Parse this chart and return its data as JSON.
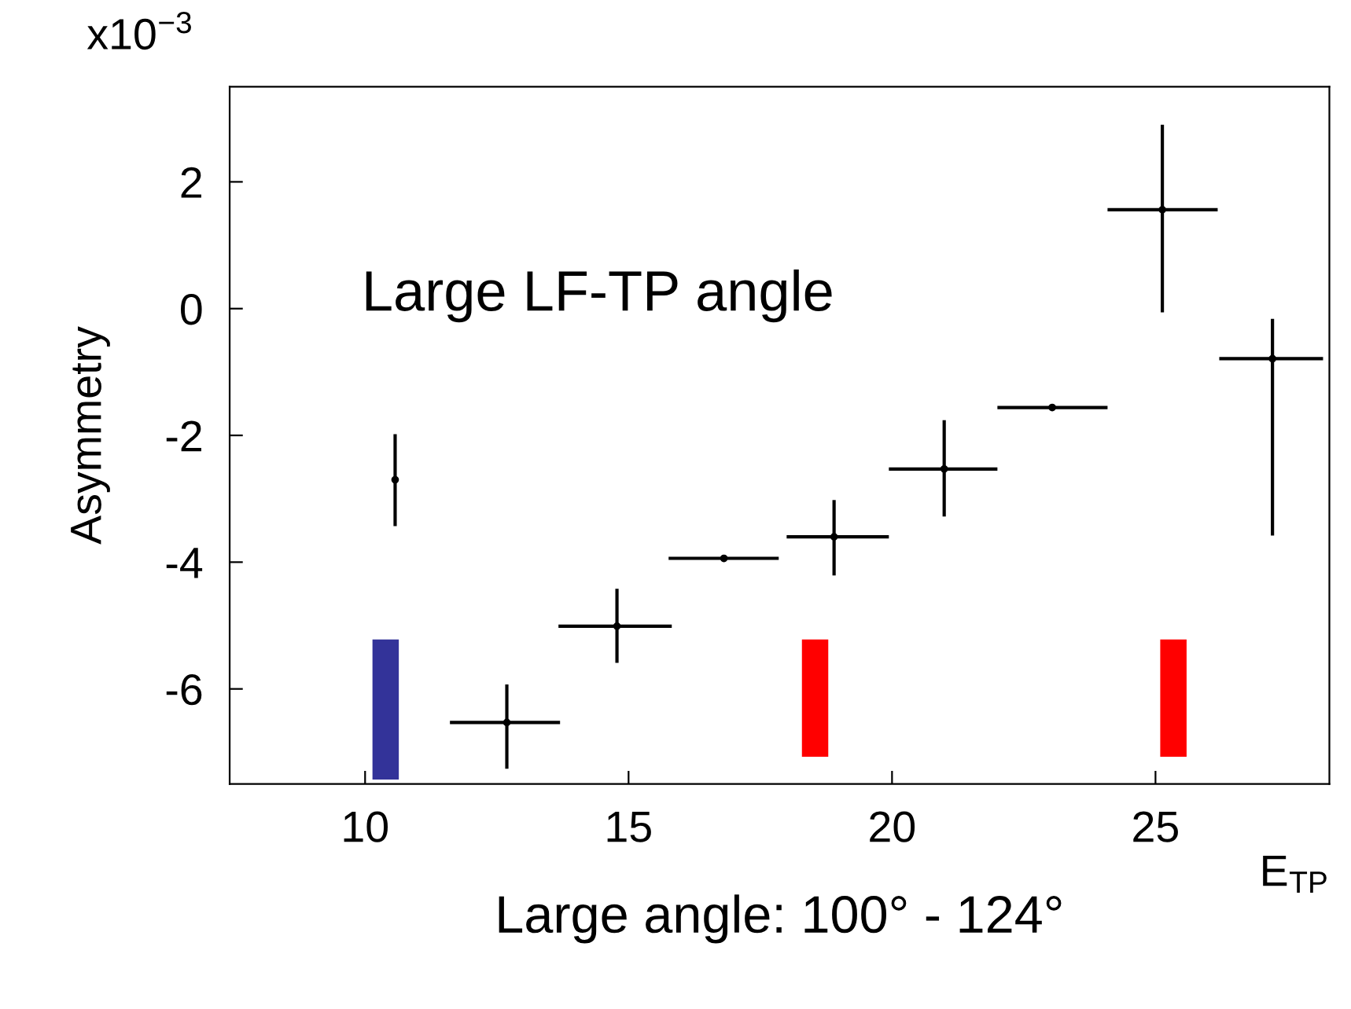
{
  "chart_data": {
    "type": "scatter",
    "xlabel": "Large angle: 100° - 124°",
    "ylabel": "Asymmetry",
    "annotations": [
      "x10$^{−3}$",
      "Large LF-TP angle",
      "E$_{TP}$"
    ],
    "xlim": [
      7.43,
      28.3
    ],
    "ylim": [
      -7.5,
      3.5
    ],
    "xticks": [
      10,
      15,
      20,
      25
    ],
    "yticks": [
      2,
      0,
      -2,
      -4,
      -6
    ],
    "grid": false,
    "series": [
      {
        "color": "#000000",
        "x": [
          10.57,
          12.69,
          14.78,
          16.81,
          18.9,
          20.99,
          23.04,
          25.13,
          27.22
        ],
        "values": [
          -2.7,
          -6.53,
          -5.01,
          -3.94,
          -3.6,
          -2.53,
          -1.56,
          1.56,
          -0.79
        ],
        "xerrors": [
          null,
          [
            11.61,
            13.7
          ],
          [
            13.67,
            15.82
          ],
          [
            15.76,
            17.85
          ],
          [
            18.0,
            19.94
          ],
          [
            19.94,
            22.0
          ],
          [
            22.0,
            24.09
          ],
          [
            24.09,
            26.18
          ],
          [
            26.21,
            28.18
          ]
        ],
        "errors": [
          [
            -3.43,
            -1.98
          ],
          [
            -7.26,
            -5.93
          ],
          [
            -5.59,
            -4.42
          ],
          null,
          [
            -4.21,
            -3.02
          ],
          [
            -3.28,
            -1.76
          ],
          null,
          [
            -0.06,
            2.9
          ],
          [
            -3.58,
            -0.16
          ]
        ]
      },
      {
        "type": "bar",
        "x": [
          10.39
        ],
        "base": [
          -7.43
        ],
        "values": [
          2.21
        ],
        "color": "#333399"
      },
      {
        "type": "bar",
        "x": [
          18.54,
          25.34
        ],
        "base": [
          -7.07,
          -7.07
        ],
        "values": [
          1.85,
          1.85
        ],
        "color": "#ff0000"
      }
    ]
  }
}
